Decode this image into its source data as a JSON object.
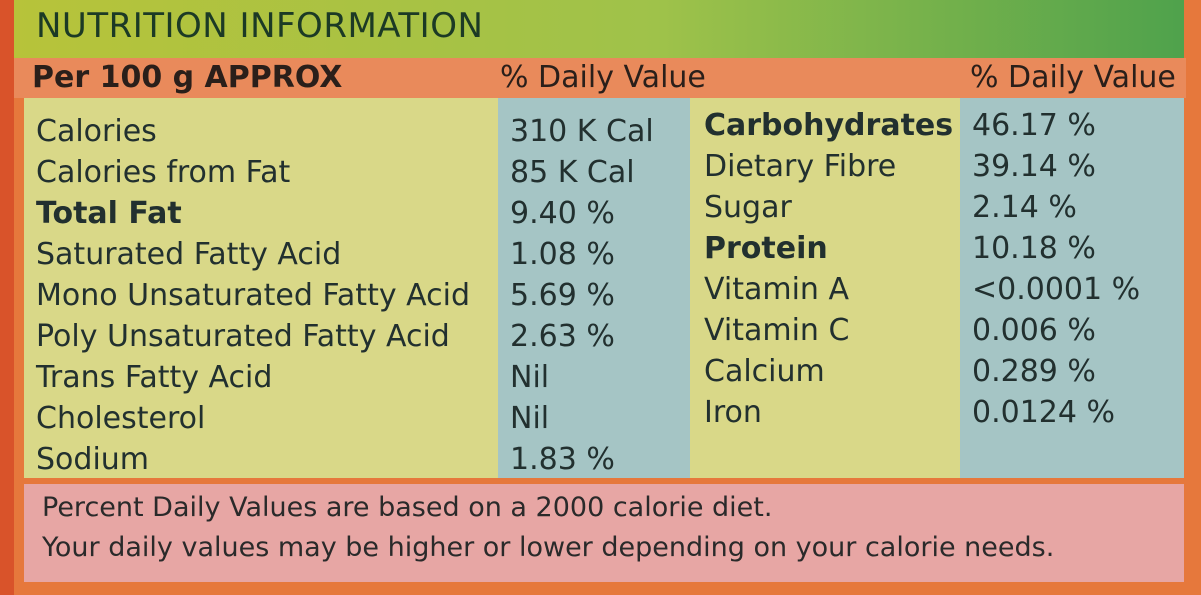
{
  "title": "NUTRITION INFORMATION",
  "header": {
    "per": "Per 100 g APPROX",
    "dv_left": "% Daily Value",
    "dv_right": "% Daily Value"
  },
  "left_rows": [
    {
      "label": "Calories",
      "value": "310 K Cal",
      "bold": false
    },
    {
      "label": "Calories from Fat",
      "value": "85 K Cal",
      "bold": false
    },
    {
      "label": "Total Fat",
      "value": "9.40 %",
      "bold": true
    },
    {
      "label": "Saturated Fatty Acid",
      "value": "1.08 %",
      "bold": false
    },
    {
      "label": "Mono Unsaturated Fatty Acid",
      "value": "5.69 %",
      "bold": false
    },
    {
      "label": "Poly Unsaturated Fatty Acid",
      "value": "2.63 %",
      "bold": false
    },
    {
      "label": "Trans Fatty Acid",
      "value": "Nil",
      "bold": false
    },
    {
      "label": "Cholesterol",
      "value": "Nil",
      "bold": false
    },
    {
      "label": "Sodium",
      "value": "1.83 %",
      "bold": false
    }
  ],
  "right_rows": [
    {
      "label": "Carbohydrates",
      "value": "46.17 %",
      "bold": true
    },
    {
      "label": "Dietary Fibre",
      "value": "39.14 %",
      "bold": false
    },
    {
      "label": "Sugar",
      "value": "2.14 %",
      "bold": false
    },
    {
      "label": "Protein",
      "value": "10.18 %",
      "bold": true
    },
    {
      "label": "Vitamin A",
      "value": "<0.0001 %",
      "bold": false
    },
    {
      "label": "Vitamin C",
      "value": "0.006 %",
      "bold": false
    },
    {
      "label": "Calcium",
      "value": "0.289 %",
      "bold": false
    },
    {
      "label": "Iron",
      "value": "0.0124 %",
      "bold": false
    }
  ],
  "footer": {
    "line1": "Percent Daily Values are based on a 2000 calorie diet.",
    "line2": "Your daily values may be higher or lower depending on your calorie needs."
  }
}
